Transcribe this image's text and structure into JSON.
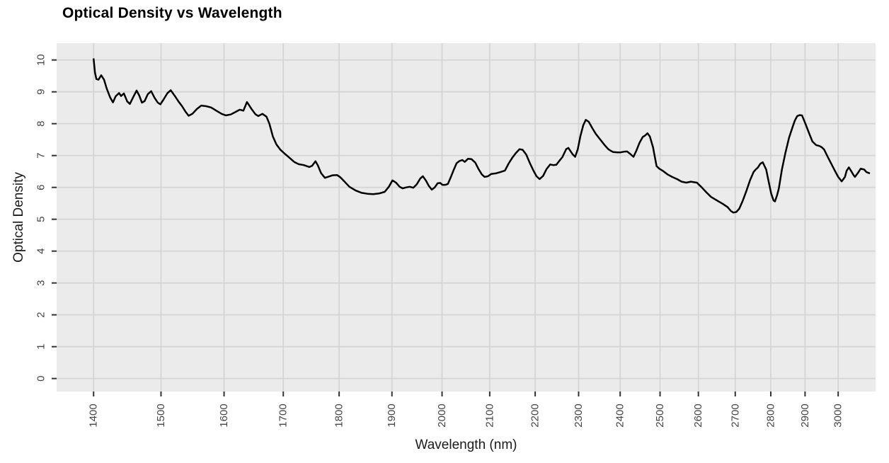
{
  "chart_data": {
    "type": "line",
    "title": "Optical Density vs Wavelength",
    "xlabel": "Wavelength (nm)",
    "ylabel": "Optical Density",
    "x_scale": "log10",
    "grid": "major",
    "legend_position": "none",
    "x_ticks": [
      1400,
      1500,
      1600,
      1700,
      1800,
      1900,
      2000,
      2100,
      2200,
      2300,
      2400,
      2500,
      2600,
      2700,
      2800,
      2900,
      3000
    ],
    "y_ticks": [
      0,
      1,
      2,
      3,
      4,
      5,
      6,
      7,
      8,
      9,
      10
    ],
    "xlim": [
      1348,
      3117
    ],
    "ylim": [
      -0.407,
      10.527
    ],
    "colors": {
      "line": "#000000",
      "panel_bg": "#EBEBEB",
      "grid": "#D5D5D5",
      "tick_mark": "#333333",
      "tick_label": "#444444",
      "axis_label": "#1A1A1A",
      "title": "#000000"
    },
    "series": [
      {
        "name": "Optical Density",
        "points": [
          [
            1400,
            10.05
          ],
          [
            1402,
            9.6
          ],
          [
            1404,
            9.4
          ],
          [
            1407,
            9.38
          ],
          [
            1411,
            9.52
          ],
          [
            1415,
            9.38
          ],
          [
            1419,
            9.1
          ],
          [
            1424,
            8.82
          ],
          [
            1428,
            8.67
          ],
          [
            1432,
            8.86
          ],
          [
            1437,
            8.96
          ],
          [
            1440,
            8.87
          ],
          [
            1444,
            8.95
          ],
          [
            1449,
            8.7
          ],
          [
            1453,
            8.62
          ],
          [
            1458,
            8.84
          ],
          [
            1463,
            9.04
          ],
          [
            1467,
            8.88
          ],
          [
            1471,
            8.66
          ],
          [
            1475,
            8.71
          ],
          [
            1480,
            8.93
          ],
          [
            1485,
            9.02
          ],
          [
            1490,
            8.82
          ],
          [
            1495,
            8.66
          ],
          [
            1499,
            8.61
          ],
          [
            1504,
            8.76
          ],
          [
            1510,
            8.96
          ],
          [
            1515,
            9.05
          ],
          [
            1521,
            8.88
          ],
          [
            1527,
            8.7
          ],
          [
            1533,
            8.54
          ],
          [
            1538,
            8.38
          ],
          [
            1543,
            8.25
          ],
          [
            1549,
            8.31
          ],
          [
            1556,
            8.46
          ],
          [
            1563,
            8.57
          ],
          [
            1571,
            8.55
          ],
          [
            1579,
            8.51
          ],
          [
            1588,
            8.4
          ],
          [
            1596,
            8.31
          ],
          [
            1603,
            8.26
          ],
          [
            1611,
            8.29
          ],
          [
            1619,
            8.37
          ],
          [
            1626,
            8.44
          ],
          [
            1632,
            8.41
          ],
          [
            1638,
            8.68
          ],
          [
            1645,
            8.48
          ],
          [
            1652,
            8.3
          ],
          [
            1657,
            8.24
          ],
          [
            1664,
            8.31
          ],
          [
            1671,
            8.22
          ],
          [
            1676,
            8.0
          ],
          [
            1682,
            7.6
          ],
          [
            1688,
            7.35
          ],
          [
            1695,
            7.18
          ],
          [
            1703,
            7.05
          ],
          [
            1711,
            6.93
          ],
          [
            1719,
            6.8
          ],
          [
            1727,
            6.73
          ],
          [
            1736,
            6.7
          ],
          [
            1746,
            6.64
          ],
          [
            1751,
            6.68
          ],
          [
            1757,
            6.82
          ],
          [
            1761,
            6.7
          ],
          [
            1767,
            6.45
          ],
          [
            1774,
            6.3
          ],
          [
            1781,
            6.34
          ],
          [
            1788,
            6.38
          ],
          [
            1796,
            6.39
          ],
          [
            1802,
            6.32
          ],
          [
            1809,
            6.2
          ],
          [
            1819,
            6.02
          ],
          [
            1831,
            5.9
          ],
          [
            1842,
            5.83
          ],
          [
            1853,
            5.8
          ],
          [
            1864,
            5.79
          ],
          [
            1875,
            5.81
          ],
          [
            1886,
            5.86
          ],
          [
            1894,
            6.02
          ],
          [
            1901,
            6.22
          ],
          [
            1908,
            6.15
          ],
          [
            1915,
            6.02
          ],
          [
            1921,
            5.97
          ],
          [
            1928,
            6.0
          ],
          [
            1935,
            6.02
          ],
          [
            1942,
            5.99
          ],
          [
            1949,
            6.1
          ],
          [
            1956,
            6.28
          ],
          [
            1961,
            6.35
          ],
          [
            1967,
            6.22
          ],
          [
            1973,
            6.05
          ],
          [
            1979,
            5.93
          ],
          [
            1985,
            6.0
          ],
          [
            1991,
            6.13
          ],
          [
            1996,
            6.14
          ],
          [
            2001,
            6.08
          ],
          [
            2007,
            6.08
          ],
          [
            2012,
            6.11
          ],
          [
            2018,
            6.32
          ],
          [
            2024,
            6.55
          ],
          [
            2030,
            6.76
          ],
          [
            2036,
            6.83
          ],
          [
            2042,
            6.86
          ],
          [
            2047,
            6.8
          ],
          [
            2054,
            6.9
          ],
          [
            2061,
            6.89
          ],
          [
            2069,
            6.78
          ],
          [
            2076,
            6.58
          ],
          [
            2083,
            6.41
          ],
          [
            2089,
            6.33
          ],
          [
            2096,
            6.35
          ],
          [
            2103,
            6.42
          ],
          [
            2113,
            6.44
          ],
          [
            2123,
            6.48
          ],
          [
            2133,
            6.53
          ],
          [
            2141,
            6.75
          ],
          [
            2149,
            6.93
          ],
          [
            2157,
            7.08
          ],
          [
            2165,
            7.2
          ],
          [
            2172,
            7.18
          ],
          [
            2180,
            7.03
          ],
          [
            2188,
            6.77
          ],
          [
            2196,
            6.53
          ],
          [
            2203,
            6.35
          ],
          [
            2210,
            6.26
          ],
          [
            2218,
            6.36
          ],
          [
            2226,
            6.58
          ],
          [
            2234,
            6.72
          ],
          [
            2241,
            6.7
          ],
          [
            2248,
            6.71
          ],
          [
            2256,
            6.85
          ],
          [
            2262,
            6.95
          ],
          [
            2271,
            7.2
          ],
          [
            2276,
            7.24
          ],
          [
            2286,
            7.04
          ],
          [
            2292,
            6.96
          ],
          [
            2298,
            7.2
          ],
          [
            2304,
            7.6
          ],
          [
            2311,
            7.95
          ],
          [
            2317,
            8.12
          ],
          [
            2324,
            8.06
          ],
          [
            2333,
            7.85
          ],
          [
            2341,
            7.68
          ],
          [
            2348,
            7.56
          ],
          [
            2362,
            7.33
          ],
          [
            2371,
            7.2
          ],
          [
            2377,
            7.15
          ],
          [
            2383,
            7.11
          ],
          [
            2394,
            7.1
          ],
          [
            2401,
            7.1
          ],
          [
            2409,
            7.12
          ],
          [
            2417,
            7.13
          ],
          [
            2425,
            7.05
          ],
          [
            2433,
            6.96
          ],
          [
            2440,
            7.15
          ],
          [
            2448,
            7.4
          ],
          [
            2456,
            7.58
          ],
          [
            2462,
            7.63
          ],
          [
            2468,
            7.7
          ],
          [
            2474,
            7.6
          ],
          [
            2482,
            7.26
          ],
          [
            2491,
            6.67
          ],
          [
            2498,
            6.59
          ],
          [
            2507,
            6.52
          ],
          [
            2519,
            6.41
          ],
          [
            2531,
            6.33
          ],
          [
            2544,
            6.26
          ],
          [
            2556,
            6.18
          ],
          [
            2568,
            6.15
          ],
          [
            2580,
            6.18
          ],
          [
            2596,
            6.15
          ],
          [
            2609,
            6.0
          ],
          [
            2621,
            5.85
          ],
          [
            2634,
            5.7
          ],
          [
            2650,
            5.59
          ],
          [
            2666,
            5.48
          ],
          [
            2679,
            5.38
          ],
          [
            2688,
            5.26
          ],
          [
            2695,
            5.21
          ],
          [
            2703,
            5.23
          ],
          [
            2711,
            5.33
          ],
          [
            2721,
            5.59
          ],
          [
            2731,
            5.89
          ],
          [
            2741,
            6.22
          ],
          [
            2751,
            6.48
          ],
          [
            2757,
            6.56
          ],
          [
            2763,
            6.62
          ],
          [
            2770,
            6.74
          ],
          [
            2777,
            6.79
          ],
          [
            2787,
            6.56
          ],
          [
            2794,
            6.18
          ],
          [
            2801,
            5.81
          ],
          [
            2808,
            5.59
          ],
          [
            2812,
            5.56
          ],
          [
            2818,
            5.75
          ],
          [
            2823,
            5.96
          ],
          [
            2832,
            6.56
          ],
          [
            2842,
            7.07
          ],
          [
            2853,
            7.56
          ],
          [
            2863,
            7.89
          ],
          [
            2870,
            8.1
          ],
          [
            2877,
            8.24
          ],
          [
            2884,
            8.27
          ],
          [
            2891,
            8.26
          ],
          [
            2901,
            8.0
          ],
          [
            2912,
            7.7
          ],
          [
            2922,
            7.44
          ],
          [
            2933,
            7.33
          ],
          [
            2943,
            7.3
          ],
          [
            2950,
            7.26
          ],
          [
            2957,
            7.19
          ],
          [
            2968,
            6.96
          ],
          [
            2979,
            6.74
          ],
          [
            2990,
            6.52
          ],
          [
            3000,
            6.33
          ],
          [
            3011,
            6.19
          ],
          [
            3021,
            6.33
          ],
          [
            3026,
            6.52
          ],
          [
            3033,
            6.63
          ],
          [
            3041,
            6.5
          ],
          [
            3048,
            6.38
          ],
          [
            3052,
            6.33
          ],
          [
            3063,
            6.48
          ],
          [
            3070,
            6.59
          ],
          [
            3081,
            6.56
          ],
          [
            3088,
            6.48
          ],
          [
            3099,
            6.44
          ]
        ]
      }
    ]
  }
}
